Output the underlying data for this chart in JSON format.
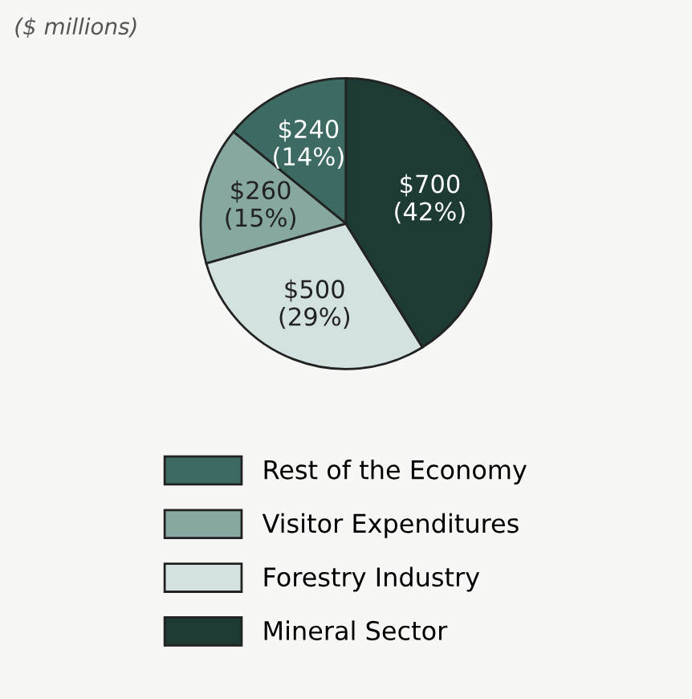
{
  "chart_data": {
    "type": "pie",
    "subtitle": "($ millions)",
    "categories": [
      "Rest of the Economy",
      "Visitor Expenditures",
      "Forestry Industry",
      "Mineral Sector"
    ],
    "values": [
      240,
      260,
      500,
      700
    ],
    "value_labels": [
      "$240\n(14%)",
      "$260\n(15%)",
      "$500\n(29%)",
      "$700\n(42%)"
    ],
    "colors": [
      "#3d6b63",
      "#86a8a1",
      "#d3e2e0",
      "#1d3b34"
    ],
    "legend": "bottom"
  }
}
